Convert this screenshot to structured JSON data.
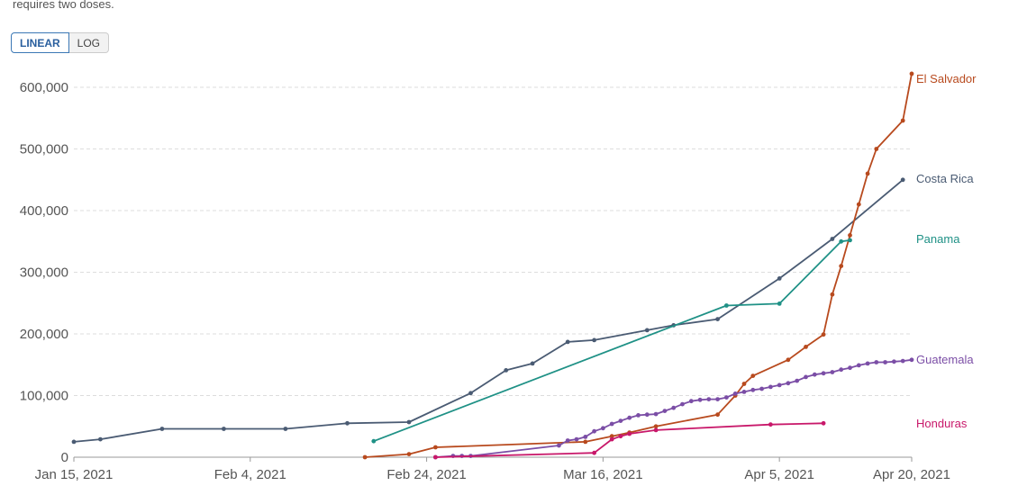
{
  "note": "requires two doses.",
  "scale_toggle": {
    "linear_label": "LINEAR",
    "log_label": "LOG",
    "selected": "linear"
  },
  "chart_data": {
    "type": "line",
    "title": "",
    "xlabel": "",
    "ylabel": "",
    "grid": true,
    "x_ticks": [
      "Jan 15, 2021",
      "Feb 4, 2021",
      "Feb 24, 2021",
      "Mar 16, 2021",
      "Apr 5, 2021",
      "Apr 20, 2021"
    ],
    "y_ticks": [
      "0",
      "100,000",
      "200,000",
      "300,000",
      "400,000",
      "500,000",
      "600,000"
    ],
    "xlim": [
      "2021-01-15",
      "2021-04-20"
    ],
    "ylim": [
      0,
      620000
    ],
    "series": [
      {
        "name": "Costa Rica",
        "color": "#4a5b73",
        "points": [
          [
            "2021-01-15",
            25000
          ],
          [
            "2021-01-18",
            29000
          ],
          [
            "2021-01-25",
            46000
          ],
          [
            "2021-02-01",
            46000
          ],
          [
            "2021-02-08",
            46000
          ],
          [
            "2021-02-15",
            55000
          ],
          [
            "2021-02-22",
            57000
          ],
          [
            "2021-03-01",
            104000
          ],
          [
            "2021-03-05",
            141000
          ],
          [
            "2021-03-08",
            152000
          ],
          [
            "2021-03-12",
            187000
          ],
          [
            "2021-03-15",
            190000
          ],
          [
            "2021-03-21",
            206000
          ],
          [
            "2021-03-24",
            214000
          ],
          [
            "2021-03-29",
            224000
          ],
          [
            "2021-04-05",
            290000
          ],
          [
            "2021-04-11",
            354000
          ],
          [
            "2021-04-19",
            450000
          ]
        ]
      },
      {
        "name": "El Salvador",
        "color": "#b84a1e",
        "points": [
          [
            "2021-02-17",
            0
          ],
          [
            "2021-02-22",
            5000
          ],
          [
            "2021-02-25",
            16000
          ],
          [
            "2021-03-14",
            25000
          ],
          [
            "2021-03-17",
            34000
          ],
          [
            "2021-03-19",
            40000
          ],
          [
            "2021-03-22",
            50000
          ],
          [
            "2021-03-29",
            69000
          ],
          [
            "2021-03-31",
            100000
          ],
          [
            "2021-04-01",
            119000
          ],
          [
            "2021-04-02",
            132000
          ],
          [
            "2021-04-06",
            158000
          ],
          [
            "2021-04-08",
            179000
          ],
          [
            "2021-04-10",
            199000
          ],
          [
            "2021-04-11",
            264000
          ],
          [
            "2021-04-12",
            310000
          ],
          [
            "2021-04-13",
            360000
          ],
          [
            "2021-04-14",
            410000
          ],
          [
            "2021-04-15",
            460000
          ],
          [
            "2021-04-16",
            500000
          ],
          [
            "2021-04-19",
            546000
          ],
          [
            "2021-04-20",
            622000
          ]
        ]
      },
      {
        "name": "Panama",
        "color": "#1f9186",
        "points": [
          [
            "2021-02-18",
            26000
          ],
          [
            "2021-03-30",
            246000
          ],
          [
            "2021-04-05",
            249000
          ],
          [
            "2021-04-12",
            350000
          ],
          [
            "2021-04-13",
            352000
          ]
        ]
      },
      {
        "name": "Guatemala",
        "color": "#7b4ea6",
        "points": [
          [
            "2021-02-25",
            0
          ],
          [
            "2021-02-27",
            2000
          ],
          [
            "2021-02-28",
            2000
          ],
          [
            "2021-03-01",
            2000
          ],
          [
            "2021-03-11",
            19000
          ],
          [
            "2021-03-12",
            27000
          ],
          [
            "2021-03-13",
            29000
          ],
          [
            "2021-03-14",
            33000
          ],
          [
            "2021-03-15",
            42000
          ],
          [
            "2021-03-16",
            47000
          ],
          [
            "2021-03-17",
            54000
          ],
          [
            "2021-03-18",
            59000
          ],
          [
            "2021-03-19",
            64000
          ],
          [
            "2021-03-20",
            68000
          ],
          [
            "2021-03-21",
            69000
          ],
          [
            "2021-03-22",
            70000
          ],
          [
            "2021-03-23",
            75000
          ],
          [
            "2021-03-24",
            80000
          ],
          [
            "2021-03-25",
            86000
          ],
          [
            "2021-03-26",
            91000
          ],
          [
            "2021-03-27",
            93000
          ],
          [
            "2021-03-28",
            94000
          ],
          [
            "2021-03-29",
            94000
          ],
          [
            "2021-03-30",
            97000
          ],
          [
            "2021-03-31",
            103000
          ],
          [
            "2021-04-01",
            106000
          ],
          [
            "2021-04-02",
            109000
          ],
          [
            "2021-04-03",
            111000
          ],
          [
            "2021-04-04",
            114000
          ],
          [
            "2021-04-05",
            117000
          ],
          [
            "2021-04-06",
            120000
          ],
          [
            "2021-04-07",
            124000
          ],
          [
            "2021-04-08",
            130000
          ],
          [
            "2021-04-09",
            134000
          ],
          [
            "2021-04-10",
            136000
          ],
          [
            "2021-04-11",
            138000
          ],
          [
            "2021-04-12",
            142000
          ],
          [
            "2021-04-13",
            145000
          ],
          [
            "2021-04-14",
            149000
          ],
          [
            "2021-04-15",
            152000
          ],
          [
            "2021-04-16",
            154000
          ],
          [
            "2021-04-17",
            154000
          ],
          [
            "2021-04-18",
            155000
          ],
          [
            "2021-04-19",
            156000
          ],
          [
            "2021-04-20",
            158000
          ]
        ]
      },
      {
        "name": "Honduras",
        "color": "#c8186a",
        "points": [
          [
            "2021-02-25",
            0
          ],
          [
            "2021-03-15",
            7000
          ],
          [
            "2021-03-17",
            29000
          ],
          [
            "2021-03-18",
            34000
          ],
          [
            "2021-03-19",
            38000
          ],
          [
            "2021-03-22",
            44000
          ],
          [
            "2021-04-04",
            53000
          ],
          [
            "2021-04-10",
            55000
          ]
        ]
      }
    ]
  }
}
